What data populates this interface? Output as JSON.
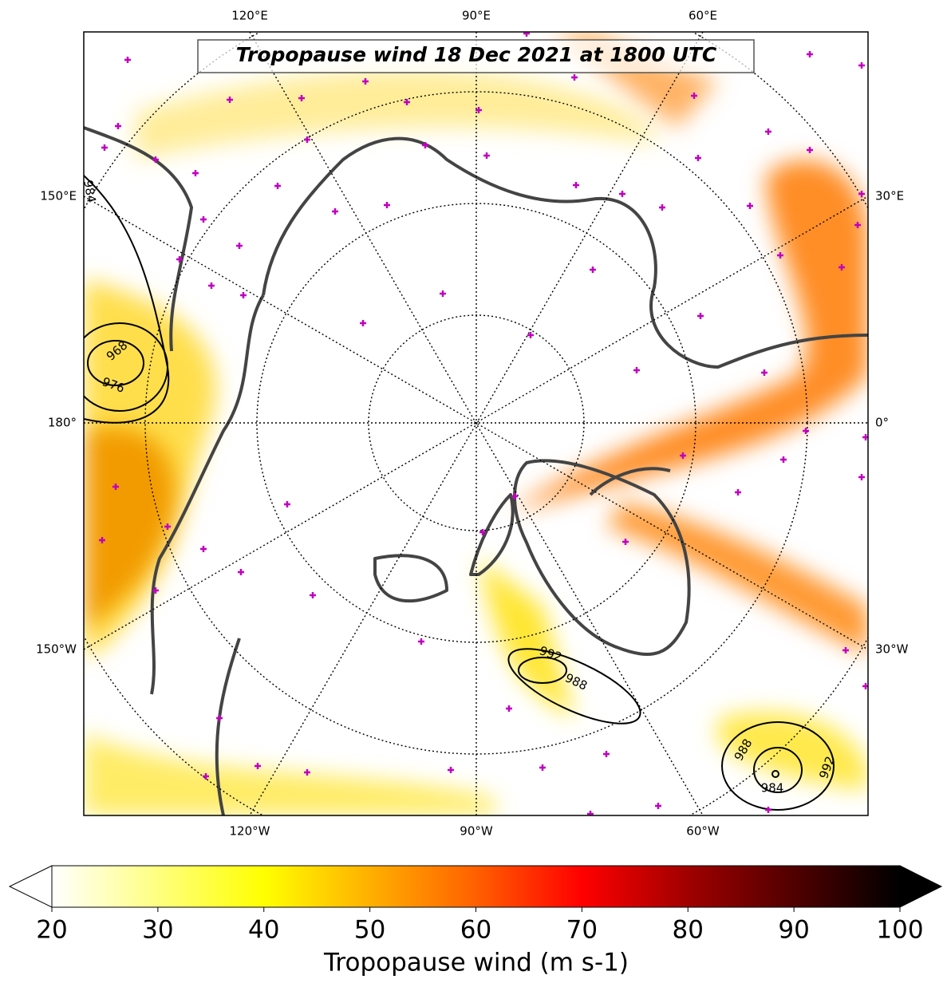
{
  "title": "Tropopause wind 18 Dec 2021 at 1800 UTC",
  "grid_labels": {
    "top": [
      "120°E",
      "90°E",
      "60°E"
    ],
    "left": [
      "150°E",
      "180°",
      "150°W"
    ],
    "right": [
      "30°E",
      "0°",
      "30°W"
    ],
    "bottom": [
      "120°W",
      "90°W",
      "60°W"
    ]
  },
  "contour_labels": [
    968,
    976,
    984,
    992,
    988,
    988,
    984,
    992
  ],
  "colorbar": {
    "label": "Tropopause wind (m s-1)",
    "range": [
      20,
      100
    ],
    "ticks": [
      20,
      30,
      40,
      50,
      60,
      70,
      80,
      90,
      100
    ]
  }
}
